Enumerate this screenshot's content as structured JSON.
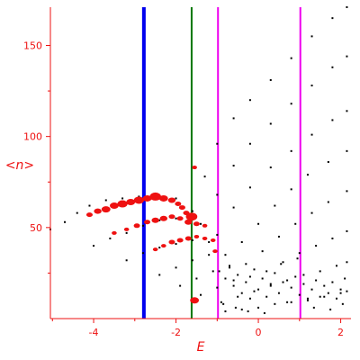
{
  "colors": {
    "axis": "#ee1111",
    "points": "#000000",
    "highlight": "#ee1111",
    "blue_line": "#0000ee",
    "green_line": "#007700",
    "magenta_line": "#ee00ee"
  },
  "chart_data": {
    "type": "scatter",
    "xlabel": "E",
    "ylabel": "<n>",
    "xlim": [
      -5.05,
      2.25
    ],
    "ylim": [
      0,
      171
    ],
    "xticks": [
      -4,
      -2,
      0,
      2
    ],
    "xtick_labels": [
      "-4",
      "-2",
      "0",
      "2"
    ],
    "yticks": [
      50,
      100,
      150
    ],
    "ytick_labels": [
      "50",
      "100",
      "150"
    ],
    "grid": false,
    "legend": "none",
    "vertical_lines": [
      {
        "x": -2.78,
        "color": "blue",
        "weight": "thick"
      },
      {
        "x": -1.62,
        "color": "green",
        "weight": "thin"
      },
      {
        "x": -0.98,
        "color": "magenta",
        "weight": "thin"
      },
      {
        "x": 1.02,
        "color": "magenta",
        "weight": "thin"
      }
    ],
    "series": [
      {
        "color": "black",
        "marker": "dot",
        "points": [
          [
            -5.05,
            49
          ],
          [
            -4.7,
            53
          ],
          [
            -4.4,
            58
          ],
          [
            -4.1,
            62
          ],
          [
            -3.7,
            65
          ],
          [
            -3.3,
            66
          ],
          [
            -2.9,
            67
          ],
          [
            -2.4,
            67
          ],
          [
            -2.0,
            66
          ],
          [
            -1.6,
            59
          ],
          [
            -1.3,
            78
          ],
          [
            -1.0,
            96
          ],
          [
            -0.6,
            110
          ],
          [
            -0.2,
            120
          ],
          [
            0.3,
            131
          ],
          [
            0.8,
            143
          ],
          [
            1.3,
            155
          ],
          [
            1.8,
            165
          ],
          [
            2.15,
            171
          ]
        ]
      },
      {
        "color": "black",
        "marker": "dot",
        "points": [
          [
            -4.0,
            40
          ],
          [
            -3.6,
            44
          ],
          [
            -3.2,
            47
          ],
          [
            -2.8,
            51
          ],
          [
            -2.4,
            54
          ],
          [
            -2.0,
            55
          ],
          [
            -1.7,
            53
          ],
          [
            -1.4,
            52
          ],
          [
            -1.0,
            68
          ],
          [
            -0.6,
            84
          ],
          [
            -0.2,
            96
          ],
          [
            0.3,
            107
          ],
          [
            0.8,
            118
          ],
          [
            1.3,
            128
          ],
          [
            1.8,
            138
          ],
          [
            2.15,
            144
          ]
        ]
      },
      {
        "color": "black",
        "marker": "dot",
        "points": [
          [
            -3.2,
            32
          ],
          [
            -2.8,
            36
          ],
          [
            -2.4,
            39
          ],
          [
            -2.0,
            41
          ],
          [
            -1.6,
            43
          ],
          [
            -1.2,
            42
          ],
          [
            -1.0,
            46
          ],
          [
            -0.6,
            61
          ],
          [
            -0.2,
            72
          ],
          [
            0.3,
            83
          ],
          [
            0.8,
            92
          ],
          [
            1.3,
            101
          ],
          [
            1.8,
            109
          ],
          [
            2.15,
            114
          ]
        ]
      },
      {
        "color": "black",
        "marker": "dot",
        "points": [
          [
            -2.4,
            24
          ],
          [
            -2.0,
            28
          ],
          [
            -1.6,
            32
          ],
          [
            -1.2,
            35
          ],
          [
            -0.8,
            35
          ],
          [
            -0.4,
            42
          ],
          [
            0.0,
            52
          ],
          [
            0.4,
            62
          ],
          [
            0.8,
            71
          ],
          [
            1.2,
            79
          ],
          [
            1.7,
            86
          ],
          [
            2.15,
            92
          ]
        ]
      },
      {
        "color": "black",
        "marker": "dot",
        "points": [
          [
            -1.9,
            18
          ],
          [
            -1.5,
            22
          ],
          [
            -1.1,
            26
          ],
          [
            -0.7,
            28
          ],
          [
            -0.3,
            30
          ],
          [
            0.1,
            37
          ],
          [
            0.5,
            45
          ],
          [
            0.9,
            52
          ],
          [
            1.3,
            58
          ],
          [
            1.7,
            64
          ],
          [
            2.15,
            70
          ]
        ]
      },
      {
        "color": "black",
        "marker": "dot",
        "points": [
          [
            -1.4,
            13
          ],
          [
            -1.0,
            17
          ],
          [
            -0.6,
            21
          ],
          [
            -0.2,
            23
          ],
          [
            0.2,
            26
          ],
          [
            0.6,
            31
          ],
          [
            1.0,
            36
          ],
          [
            1.4,
            40
          ],
          [
            1.8,
            44
          ],
          [
            2.15,
            48
          ]
        ]
      },
      {
        "color": "black",
        "marker": "dot",
        "points": [
          [
            -0.9,
            9
          ],
          [
            -0.5,
            12
          ],
          [
            -0.1,
            15
          ],
          [
            0.3,
            18
          ],
          [
            0.7,
            21
          ],
          [
            1.1,
            24
          ],
          [
            1.5,
            26
          ],
          [
            1.9,
            29
          ],
          [
            2.15,
            31
          ]
        ]
      },
      {
        "color": "black",
        "marker": "dot",
        "points": [
          [
            -0.8,
            4
          ],
          [
            -0.4,
            5
          ],
          [
            0.0,
            6
          ],
          [
            0.4,
            8
          ],
          [
            0.8,
            9
          ],
          [
            1.2,
            11
          ],
          [
            1.6,
            12
          ],
          [
            2.0,
            14
          ],
          [
            2.15,
            15
          ]
        ]
      },
      {
        "color": "black",
        "marker": "dot",
        "points": [
          [
            -0.95,
            26
          ],
          [
            -0.8,
            22
          ],
          [
            -0.7,
            29
          ],
          [
            -0.6,
            18
          ],
          [
            -0.5,
            24
          ],
          [
            -0.4,
            14
          ],
          [
            -0.3,
            20
          ],
          [
            -0.2,
            11
          ],
          [
            -0.1,
            27
          ],
          [
            0.0,
            16
          ],
          [
            0.1,
            22
          ],
          [
            0.2,
            12
          ],
          [
            0.3,
            19
          ],
          [
            0.4,
            25
          ],
          [
            0.5,
            14
          ],
          [
            0.6,
            20
          ],
          [
            0.7,
            9
          ],
          [
            0.8,
            17
          ],
          [
            0.9,
            23
          ],
          [
            1.0,
            13
          ],
          [
            1.1,
            19
          ],
          [
            1.2,
            10
          ],
          [
            1.3,
            16
          ],
          [
            1.4,
            21
          ],
          [
            1.5,
            12
          ],
          [
            1.6,
            18
          ],
          [
            1.7,
            14
          ],
          [
            1.8,
            20
          ],
          [
            1.9,
            11
          ],
          [
            2.0,
            16
          ],
          [
            2.1,
            22
          ],
          [
            -0.85,
            8
          ],
          [
            -0.55,
            6
          ],
          [
            -0.25,
            4
          ],
          [
            0.15,
            3
          ],
          [
            0.55,
            30
          ],
          [
            0.95,
            33
          ],
          [
            1.35,
            6
          ],
          [
            1.75,
            5
          ],
          [
            2.05,
            8
          ]
        ]
      },
      {
        "color": "red",
        "marker": "blob",
        "points": [
          [
            -4.1,
            57,
            2.5
          ],
          [
            -3.9,
            59,
            3
          ],
          [
            -3.7,
            60,
            3.5
          ],
          [
            -3.5,
            62,
            3.5
          ],
          [
            -3.3,
            63,
            4
          ],
          [
            -3.1,
            64,
            3.5
          ],
          [
            -2.9,
            65,
            4
          ],
          [
            -2.7,
            66,
            3.5
          ],
          [
            -2.5,
            67,
            4.5
          ],
          [
            -2.3,
            66,
            3.5
          ],
          [
            -2.1,
            65,
            3
          ],
          [
            -1.95,
            63,
            2.5
          ],
          [
            -1.85,
            61,
            2.5
          ],
          [
            -1.75,
            58,
            2.5
          ],
          [
            -1.65,
            56,
            3.5
          ],
          [
            -3.5,
            47,
            2
          ],
          [
            -3.2,
            49,
            2
          ],
          [
            -2.95,
            51,
            2.5
          ],
          [
            -2.7,
            53,
            2.5
          ],
          [
            -2.5,
            54,
            3
          ],
          [
            -2.3,
            55,
            3
          ],
          [
            -2.1,
            56,
            2.5
          ],
          [
            -1.9,
            55,
            2.5
          ],
          [
            -1.7,
            53,
            3
          ],
          [
            -1.5,
            52,
            2.5
          ],
          [
            -1.3,
            51,
            2
          ],
          [
            -2.5,
            38,
            2
          ],
          [
            -2.3,
            40,
            2
          ],
          [
            -2.1,
            42,
            2.5
          ],
          [
            -1.9,
            43,
            2.5
          ],
          [
            -1.7,
            44,
            2.5
          ],
          [
            -1.5,
            45,
            2
          ],
          [
            -1.3,
            44,
            2
          ],
          [
            -1.1,
            43,
            2
          ],
          [
            -1.05,
            37,
            2
          ],
          [
            -1.55,
            83,
            2
          ],
          [
            -1.55,
            10,
            3.5
          ],
          [
            -1.62,
            56,
            4.5
          ]
        ]
      }
    ]
  }
}
